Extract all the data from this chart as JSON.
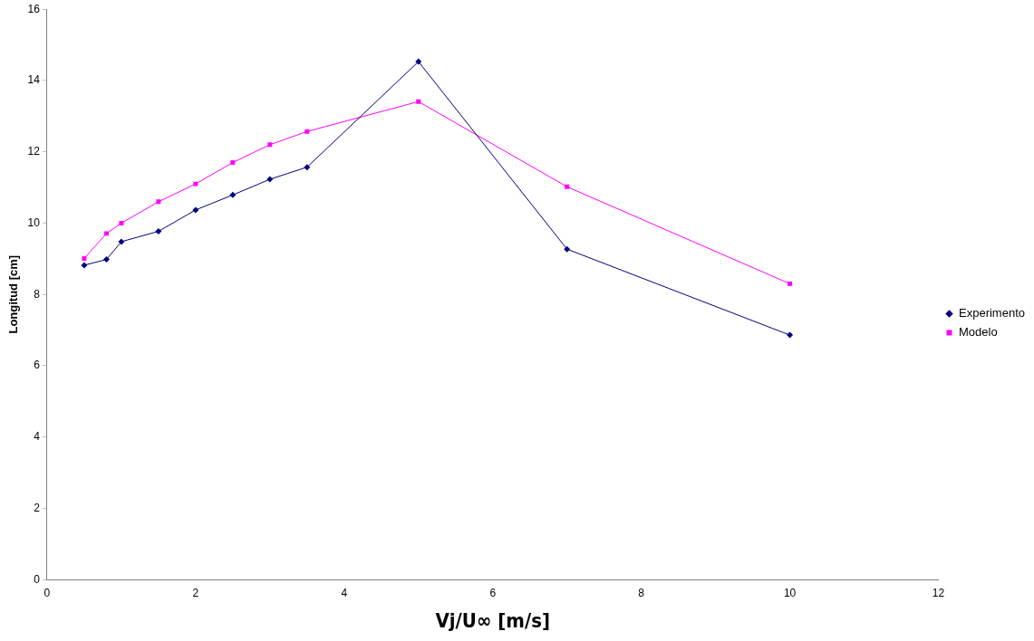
{
  "chart_data": {
    "type": "line",
    "xlabel": "Vj/U∞ [m/s]",
    "ylabel": "Longitud [cm]",
    "xlim": [
      0,
      12
    ],
    "xticks": [
      0,
      2,
      4,
      6,
      8,
      10,
      12
    ],
    "ylim": [
      0,
      16
    ],
    "yticks": [
      0,
      2,
      4,
      6,
      8,
      10,
      12,
      14,
      16
    ],
    "grid": false,
    "legend": "right",
    "line_style": "solid",
    "series": [
      {
        "name": "Experimento",
        "color": "#000080",
        "marker": "diamond",
        "x": [
          0.5,
          0.8,
          1,
          1.5,
          2,
          2.5,
          3,
          3.5,
          5,
          7,
          10
        ],
        "values": [
          8.82,
          8.98,
          9.48,
          9.77,
          10.37,
          10.79,
          11.23,
          11.57,
          14.53,
          9.27,
          6.86
        ]
      },
      {
        "name": "Modelo",
        "color": "#ff00ff",
        "marker": "square",
        "x": [
          0.5,
          0.8,
          1,
          1.5,
          2,
          2.5,
          3,
          3.5,
          5,
          7,
          10
        ],
        "values": [
          9.01,
          9.71,
          10.0,
          10.6,
          11.1,
          11.7,
          12.2,
          12.57,
          13.41,
          11.02,
          8.3
        ]
      }
    ]
  }
}
